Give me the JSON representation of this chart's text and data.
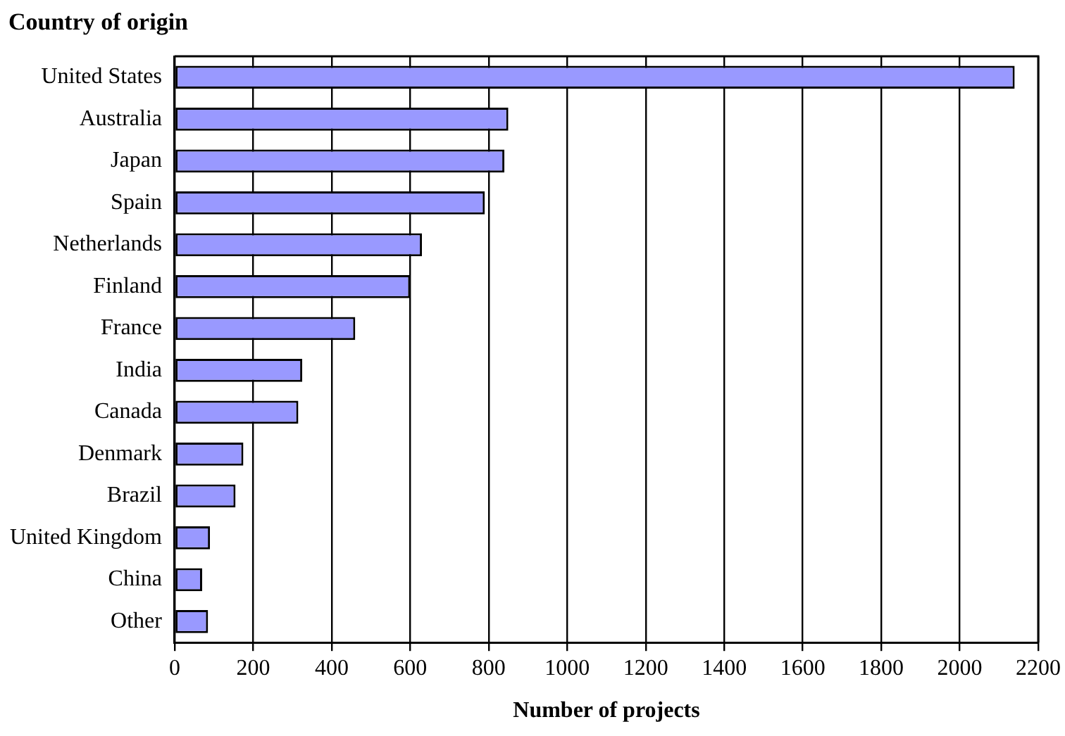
{
  "chart_data": {
    "type": "bar",
    "orientation": "horizontal",
    "title": "Country of origin",
    "xlabel": "Number of projects",
    "categories": [
      "United States",
      "Australia",
      "Japan",
      "Spain",
      "Netherlands",
      "Finland",
      "France",
      "India",
      "Canada",
      "Denmark",
      "Brazil",
      "United Kingdom",
      "China",
      "Other"
    ],
    "values": [
      2140,
      850,
      840,
      790,
      630,
      600,
      460,
      325,
      315,
      175,
      155,
      90,
      70,
      85
    ],
    "color": "#9999ff",
    "xlim": [
      0,
      2200
    ],
    "xticks": [
      0,
      200,
      400,
      600,
      800,
      1000,
      1200,
      1400,
      1600,
      1800,
      2000,
      2200
    ],
    "grid": "x",
    "legend": false
  }
}
